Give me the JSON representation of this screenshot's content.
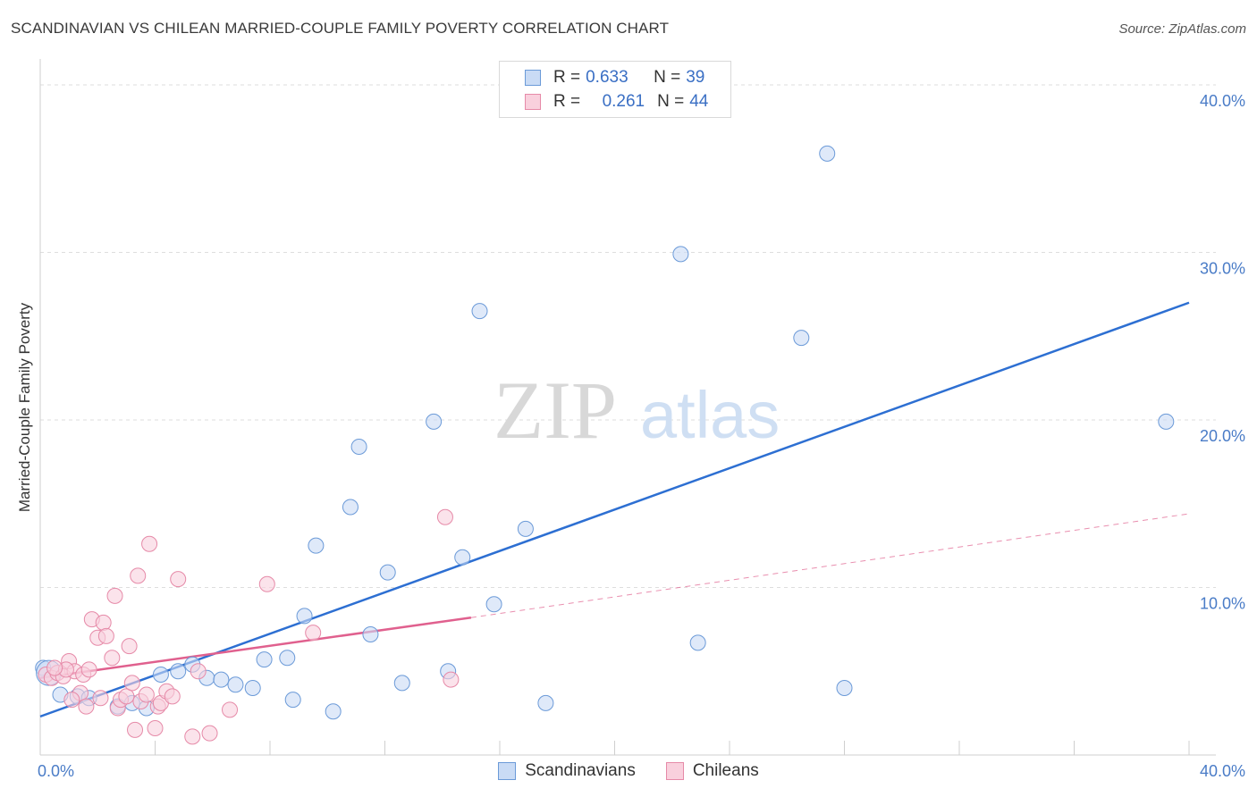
{
  "title": "SCANDINAVIAN VS CHILEAN MARRIED-COUPLE FAMILY POVERTY CORRELATION CHART",
  "source": "Source: ZipAtlas.com",
  "watermark": {
    "zip": "ZIP",
    "atlas": "atlas"
  },
  "legend": {
    "rows": [
      {
        "r_label": "R =",
        "r_value": "0.633",
        "n_label": "N =",
        "n_value": "39",
        "color": "#a9c6ef",
        "border": "#6b9ad8"
      },
      {
        "r_label": "R =",
        "r_value": "0.261",
        "n_label": "N =",
        "n_value": "44",
        "color": "#f7bed0",
        "border": "#e68aa8"
      }
    ]
  },
  "bottom_legend": [
    {
      "label": "Scandinavians",
      "color": "#a9c6ef",
      "border": "#6b9ad8"
    },
    {
      "label": "Chileans",
      "color": "#f7bed0",
      "border": "#e68aa8"
    }
  ],
  "chart_data": {
    "type": "scatter",
    "ylabel": "Married-Couple Family Poverty",
    "xlim": [
      0,
      40
    ],
    "ylim": [
      0,
      40
    ],
    "x_tick_labels": [
      "0.0%",
      "40.0%"
    ],
    "y_ticks": [
      {
        "value": 40,
        "label": "40.0%"
      },
      {
        "value": 30,
        "label": "30.0%"
      },
      {
        "value": 20,
        "label": "20.0%"
      },
      {
        "value": 10,
        "label": "10.0%"
      }
    ],
    "series": [
      {
        "name": "Scandinavians",
        "color": "#6b9ad8",
        "fill": "#c9dbf5",
        "trend_color": "#2d6fd2",
        "trend": {
          "x0": 0,
          "y0": 2.3,
          "x1": 40,
          "y1": 27.0
        },
        "points": [
          [
            0.1,
            5.2
          ],
          [
            0.7,
            3.6
          ],
          [
            1.3,
            3.5
          ],
          [
            1.7,
            3.4
          ],
          [
            2.7,
            2.9
          ],
          [
            3.2,
            3.1
          ],
          [
            3.7,
            2.8
          ],
          [
            4.2,
            4.8
          ],
          [
            4.8,
            5.0
          ],
          [
            5.3,
            5.4
          ],
          [
            5.8,
            4.6
          ],
          [
            6.3,
            4.5
          ],
          [
            6.8,
            4.2
          ],
          [
            7.4,
            4.0
          ],
          [
            7.8,
            5.7
          ],
          [
            8.6,
            5.8
          ],
          [
            9.2,
            8.3
          ],
          [
            8.8,
            3.3
          ],
          [
            9.6,
            12.5
          ],
          [
            10.2,
            2.6
          ],
          [
            10.8,
            14.8
          ],
          [
            11.1,
            18.4
          ],
          [
            11.5,
            7.2
          ],
          [
            12.1,
            10.9
          ],
          [
            12.6,
            4.3
          ],
          [
            13.7,
            19.9
          ],
          [
            14.2,
            5.0
          ],
          [
            14.7,
            11.8
          ],
          [
            15.3,
            26.5
          ],
          [
            15.8,
            9.0
          ],
          [
            16.9,
            13.5
          ],
          [
            17.6,
            3.1
          ],
          [
            22.3,
            29.9
          ],
          [
            22.9,
            6.7
          ],
          [
            26.5,
            24.9
          ],
          [
            27.4,
            35.9
          ],
          [
            28.0,
            4.0
          ],
          [
            39.2,
            19.9
          ],
          [
            0.3,
            4.9
          ]
        ]
      },
      {
        "name": "Chileans",
        "color": "#e68aa8",
        "fill": "#f9d0dd",
        "trend_color": "#e0608e",
        "trend": {
          "x0": 0,
          "y0": 4.6,
          "x1": 15,
          "y1": 8.2
        },
        "trend_ext": {
          "x0": 15,
          "y0": 8.2,
          "x1": 40,
          "y1": 14.4
        },
        "points": [
          [
            0.2,
            4.8
          ],
          [
            0.4,
            4.6
          ],
          [
            0.6,
            4.9
          ],
          [
            0.8,
            4.7
          ],
          [
            1.0,
            5.6
          ],
          [
            1.2,
            5.0
          ],
          [
            1.5,
            4.8
          ],
          [
            1.7,
            5.1
          ],
          [
            1.8,
            8.1
          ],
          [
            2.0,
            7.0
          ],
          [
            2.2,
            7.9
          ],
          [
            2.3,
            7.1
          ],
          [
            2.5,
            5.8
          ],
          [
            2.6,
            9.5
          ],
          [
            2.7,
            2.8
          ],
          [
            2.8,
            3.3
          ],
          [
            3.0,
            3.5
          ],
          [
            3.1,
            6.5
          ],
          [
            3.2,
            4.3
          ],
          [
            3.3,
            1.5
          ],
          [
            3.4,
            10.7
          ],
          [
            3.5,
            3.2
          ],
          [
            3.7,
            3.6
          ],
          [
            3.8,
            12.6
          ],
          [
            4.0,
            1.6
          ],
          [
            4.1,
            2.9
          ],
          [
            4.2,
            3.1
          ],
          [
            4.4,
            3.8
          ],
          [
            4.6,
            3.5
          ],
          [
            4.8,
            10.5
          ],
          [
            5.3,
            1.1
          ],
          [
            5.5,
            5.0
          ],
          [
            5.9,
            1.3
          ],
          [
            6.6,
            2.7
          ],
          [
            7.9,
            10.2
          ],
          [
            9.5,
            7.3
          ],
          [
            14.1,
            14.2
          ],
          [
            14.3,
            4.5
          ],
          [
            1.4,
            3.7
          ],
          [
            1.6,
            2.9
          ],
          [
            2.1,
            3.4
          ],
          [
            0.9,
            5.1
          ],
          [
            0.5,
            5.2
          ],
          [
            1.1,
            3.3
          ]
        ]
      }
    ]
  }
}
